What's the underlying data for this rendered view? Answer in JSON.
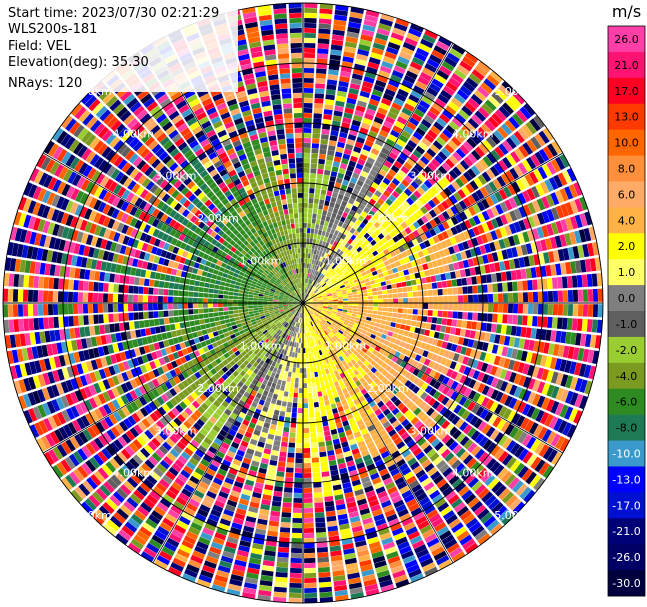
{
  "info": {
    "start_time": "Start time: 2023/07/30 02:21:29",
    "instrument": "WLS200s-181",
    "field": "Field: VEL",
    "elevation": "Elevation(deg): 35.30",
    "nrays": "NRays: 120"
  },
  "chart_data": {
    "type": "heatmap",
    "projection": "polar PPI",
    "field": "VEL",
    "units": "m/s",
    "n_rays": 120,
    "elevation_deg": 35.3,
    "range_rings_km": [
      1.0,
      2.0,
      3.0,
      4.0,
      5.0
    ],
    "ring_labels": [
      "1.00km",
      "2.00km",
      "3.00km",
      "4.00km",
      "5.00km"
    ],
    "max_range_km": 5.0,
    "grid": true,
    "colorbar": {
      "title": "m/s",
      "placement": "right",
      "ticks": [
        "26.0",
        "21.0",
        "17.0",
        "13.0",
        "10.0",
        "8.0",
        "6.0",
        "4.0",
        "2.0",
        "1.0",
        "0.0",
        "-1.0",
        "-2.0",
        "-4.0",
        "-6.0",
        "-8.0",
        "-10.0",
        "-13.0",
        "-17.0",
        "-21.0",
        "-26.0",
        "-30.0"
      ],
      "colors": [
        "#ff3fa8",
        "#ff1474",
        "#ff0022",
        "#ff3a00",
        "#ff6600",
        "#ff8f3a",
        "#ffaa66",
        "#ffb347",
        "#ffff00",
        "#ffff66",
        "#7f7f7f",
        "#5f5f5f",
        "#9acd32",
        "#7a9a20",
        "#2e8b22",
        "#1e7a55",
        "#3b9acc",
        "#0000ff",
        "#0010d0",
        "#000077",
        "#000066",
        "#00003f"
      ],
      "color_bounds": [
        30,
        26,
        21,
        17,
        13,
        10,
        8,
        6,
        4,
        2,
        1,
        0,
        -1,
        -2,
        -4,
        -6,
        -8,
        -10,
        -13,
        -17,
        -21,
        -26,
        -30
      ]
    }
  }
}
